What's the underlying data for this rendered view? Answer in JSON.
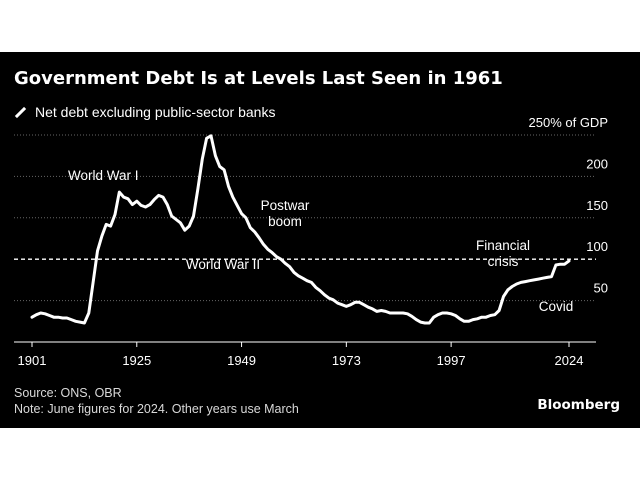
{
  "title": "Government Debt Is at Levels Last Seen in 1961",
  "legend_label": "Net debt excluding public-sector banks",
  "source": "Source: ONS, OBR",
  "note": "Note: June figures for 2024. Other years use March",
  "brand": "Bloomberg",
  "colors": {
    "background": "#000000",
    "line": "#ffffff",
    "grid": "#666666",
    "text": "#ffffff"
  },
  "chart_data": {
    "type": "line",
    "title": "Government Debt Is at Levels Last Seen in 1961",
    "xlabel": "",
    "ylabel": "",
    "xlim": [
      1901,
      2024
    ],
    "ylim": [
      0,
      250
    ],
    "x_ticks": [
      1901,
      1925,
      1949,
      1973,
      1997,
      2024
    ],
    "x_tick_labels": [
      "1901",
      "1925",
      "1949",
      "1973",
      "1997",
      "2024"
    ],
    "y_ticks": [
      50,
      100,
      150,
      200,
      250
    ],
    "y_tick_labels": [
      "50",
      "100",
      "150",
      "200",
      "250% of GDP"
    ],
    "grid": true,
    "reference_line": {
      "y": 100,
      "style": "dashed"
    },
    "legend_position": "top-left",
    "annotations": [
      {
        "text": "World War I",
        "x": 1917,
        "y": 170
      },
      {
        "text": "Postwar boom",
        "x": 1957,
        "y": 128
      },
      {
        "text": "World War II",
        "x": 1942,
        "y": 100
      },
      {
        "text": "Financial crisis",
        "x": 2011,
        "y": 82
      },
      {
        "text": "Covid",
        "x": 2020,
        "y": 25
      }
    ],
    "series": [
      {
        "name": "Net debt excluding public-sector banks",
        "x": [
          1901,
          1902,
          1903,
          1904,
          1905,
          1906,
          1907,
          1908,
          1909,
          1910,
          1911,
          1912,
          1913,
          1914,
          1915,
          1916,
          1917,
          1918,
          1919,
          1920,
          1921,
          1922,
          1923,
          1924,
          1925,
          1926,
          1927,
          1928,
          1929,
          1930,
          1931,
          1932,
          1933,
          1934,
          1935,
          1936,
          1937,
          1938,
          1939,
          1940,
          1941,
          1942,
          1943,
          1944,
          1945,
          1946,
          1947,
          1948,
          1949,
          1950,
          1951,
          1952,
          1953,
          1954,
          1955,
          1956,
          1957,
          1958,
          1959,
          1960,
          1961,
          1962,
          1963,
          1964,
          1965,
          1966,
          1967,
          1968,
          1969,
          1970,
          1971,
          1972,
          1973,
          1974,
          1975,
          1976,
          1977,
          1978,
          1979,
          1980,
          1981,
          1982,
          1983,
          1984,
          1985,
          1986,
          1987,
          1988,
          1989,
          1990,
          1991,
          1992,
          1993,
          1994,
          1995,
          1996,
          1997,
          1998,
          1999,
          2000,
          2001,
          2002,
          2003,
          2004,
          2005,
          2006,
          2007,
          2008,
          2009,
          2010,
          2011,
          2012,
          2013,
          2014,
          2015,
          2016,
          2017,
          2018,
          2019,
          2020,
          2021,
          2022,
          2023,
          2024
        ],
        "values": [
          30,
          33,
          35,
          34,
          32,
          30,
          30,
          29,
          29,
          27,
          25,
          24,
          23,
          35,
          72,
          110,
          128,
          142,
          140,
          154,
          181,
          175,
          173,
          166,
          170,
          165,
          163,
          166,
          172,
          177,
          175,
          166,
          152,
          148,
          144,
          135,
          140,
          152,
          185,
          221,
          246,
          249,
          225,
          212,
          208,
          188,
          175,
          165,
          155,
          150,
          138,
          133,
          126,
          118,
          112,
          108,
          103,
          100,
          95,
          91,
          84,
          80,
          77,
          74,
          72,
          66,
          62,
          57,
          53,
          51,
          47,
          45,
          43,
          45,
          48,
          48,
          45,
          42,
          40,
          37,
          38,
          37,
          35,
          35,
          35,
          35,
          34,
          31,
          27,
          24,
          23,
          23,
          30,
          33,
          35,
          35,
          34,
          32,
          28,
          25,
          25,
          27,
          28,
          30,
          30,
          32,
          33,
          38,
          55,
          63,
          67,
          70,
          72,
          73,
          74,
          75,
          76,
          77,
          78,
          79,
          93,
          94,
          94,
          98
        ]
      }
    ]
  }
}
